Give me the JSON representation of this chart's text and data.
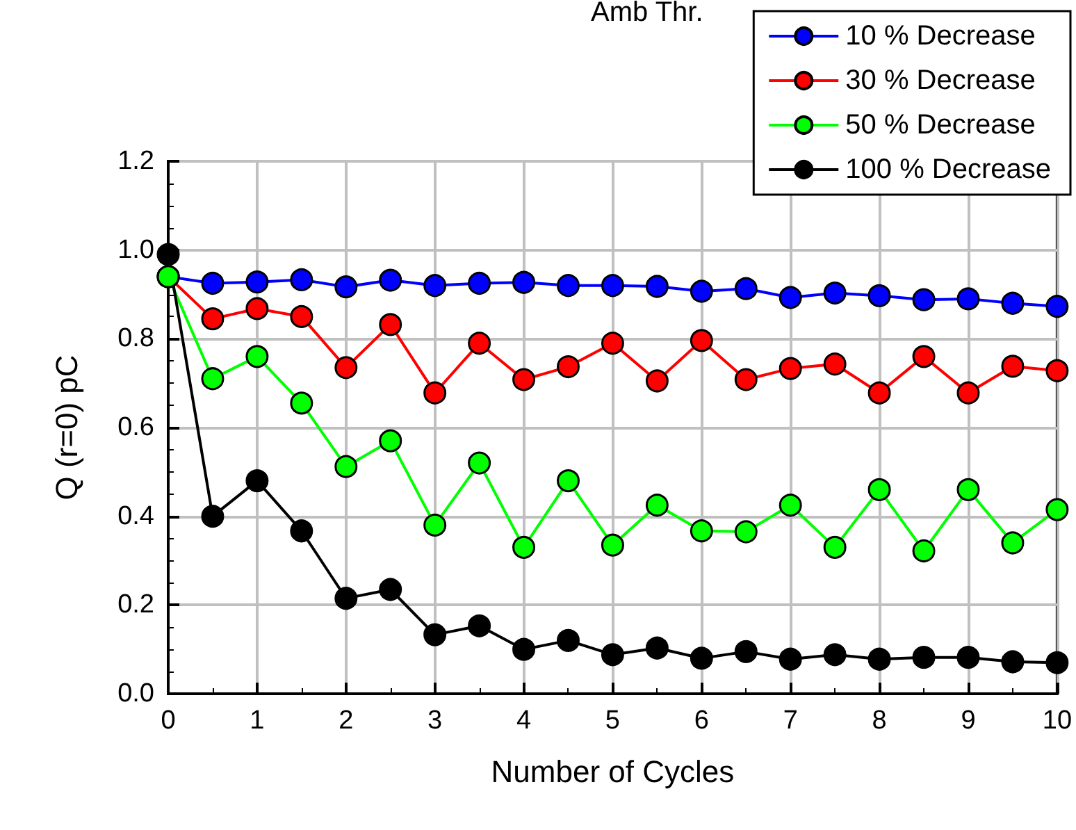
{
  "chart_data": {
    "type": "line",
    "title": "Amb Thr.",
    "xlabel": "Number of Cycles",
    "ylabel": "Q (r=0) pC",
    "x": [
      0,
      0.5,
      1,
      1.5,
      2,
      2.5,
      3,
      3.5,
      4,
      4.5,
      5,
      5.5,
      6,
      6.5,
      7,
      7.5,
      8,
      8.5,
      9,
      9.5,
      10
    ],
    "series": [
      {
        "name": "10 % Decrease",
        "color": "#0000ff",
        "values": [
          0.94,
          0.925,
          0.928,
          0.933,
          0.917,
          0.932,
          0.92,
          0.925,
          0.927,
          0.92,
          0.92,
          0.918,
          0.907,
          0.913,
          0.893,
          0.903,
          0.897,
          0.888,
          0.89,
          0.88,
          0.873
        ]
      },
      {
        "name": "30 % Decrease",
        "color": "#ff0000",
        "values": [
          0.94,
          0.845,
          0.868,
          0.85,
          0.735,
          0.832,
          0.678,
          0.79,
          0.708,
          0.737,
          0.79,
          0.705,
          0.796,
          0.708,
          0.733,
          0.743,
          0.678,
          0.76,
          0.678,
          0.738,
          0.728
        ]
      },
      {
        "name": "50 % Decrease",
        "color": "#00ff00",
        "values": [
          0.94,
          0.71,
          0.76,
          0.655,
          0.512,
          0.57,
          0.38,
          0.52,
          0.33,
          0.48,
          0.335,
          0.425,
          0.367,
          0.365,
          0.425,
          0.33,
          0.46,
          0.322,
          0.46,
          0.34,
          0.415
        ]
      },
      {
        "name": "100 % Decrease",
        "color": "#000000",
        "values": [
          0.99,
          0.4,
          0.48,
          0.367,
          0.215,
          0.235,
          0.133,
          0.153,
          0.1,
          0.12,
          0.088,
          0.103,
          0.08,
          0.095,
          0.078,
          0.088,
          0.078,
          0.082,
          0.082,
          0.072,
          0.07
        ]
      }
    ],
    "xlim": [
      0,
      10
    ],
    "xticks": [
      0,
      1,
      2,
      3,
      4,
      5,
      6,
      7,
      8,
      9,
      10
    ],
    "ylim": [
      0,
      1.2
    ],
    "yticks": [
      {
        "value": 0,
        "label": "0.0"
      },
      {
        "value": 0.2,
        "label": "0.2"
      },
      {
        "value": 0.4,
        "label": "0.4"
      },
      {
        "value": 0.6,
        "label": "0.6"
      },
      {
        "value": 0.8,
        "label": "0.8"
      },
      {
        "value": 1,
        "label": "1.0"
      },
      {
        "value": 1.2,
        "label": "1.2"
      }
    ],
    "grid": true,
    "legend": "top right",
    "marker": "circle",
    "line_style": "solid"
  }
}
